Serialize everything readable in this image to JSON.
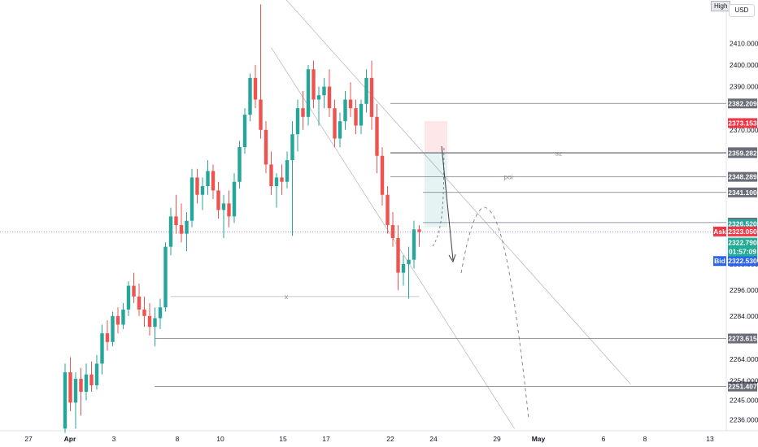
{
  "ui": {
    "currency": "USD",
    "high_label": "High",
    "ask_label": "Ask",
    "bid_label": "Bid",
    "countdown": "01:57:09"
  },
  "colors": {
    "up": "#26a69a",
    "down": "#ef5350",
    "ask": "#f23645",
    "bid": "#2962ff",
    "level": "#787b86",
    "level_tag": "#6a6d78",
    "last": "#22ab94"
  },
  "chart_data": {
    "type": "candlestick",
    "ylim": [
      2231,
      2430
    ],
    "y_ticks": [
      {
        "value": 2410,
        "label": "2410.000"
      },
      {
        "value": 2400,
        "label": "2400.000"
      },
      {
        "value": 2390,
        "label": "2390.000"
      },
      {
        "value": 2370,
        "label": "2370.000"
      },
      {
        "value": 2308,
        "label": "2308.000"
      },
      {
        "value": 2296,
        "label": "2296.000"
      },
      {
        "value": 2284,
        "label": "2284.000"
      },
      {
        "value": 2264,
        "label": "2264.000"
      },
      {
        "value": 2254,
        "label": "2254.000"
      },
      {
        "value": 2245,
        "label": "2245.000"
      },
      {
        "value": 2236,
        "label": "2236.000"
      }
    ],
    "x_ticks": [
      {
        "label": "27",
        "bold": false
      },
      {
        "label": "Apr",
        "bold": true
      },
      {
        "label": "3",
        "bold": false
      },
      {
        "label": "8",
        "bold": false
      },
      {
        "label": "10",
        "bold": false
      },
      {
        "label": "15",
        "bold": false
      },
      {
        "label": "17",
        "bold": false
      },
      {
        "label": "22",
        "bold": false
      },
      {
        "label": "24",
        "bold": false
      },
      {
        "label": "29",
        "bold": false
      },
      {
        "label": "May",
        "bold": true
      },
      {
        "label": "6",
        "bold": false
      },
      {
        "label": "8",
        "bold": false
      },
      {
        "label": "13",
        "bold": false
      }
    ],
    "candles_ohlc": [
      [
        2232,
        2262,
        2230,
        2258
      ],
      [
        2258,
        2265,
        2240,
        2244
      ],
      [
        2244,
        2258,
        2232,
        2255
      ],
      [
        2255,
        2260,
        2238,
        2249
      ],
      [
        2249,
        2262,
        2245,
        2257
      ],
      [
        2257,
        2263,
        2249,
        2252
      ],
      [
        2252,
        2266,
        2250,
        2262
      ],
      [
        2262,
        2280,
        2257,
        2276
      ],
      [
        2276,
        2282,
        2268,
        2272
      ],
      [
        2272,
        2286,
        2270,
        2284
      ],
      [
        2284,
        2288,
        2276,
        2280
      ],
      [
        2280,
        2290,
        2278,
        2287
      ],
      [
        2287,
        2300,
        2284,
        2298
      ],
      [
        2298,
        2304,
        2290,
        2293
      ],
      [
        2293,
        2299,
        2284,
        2287
      ],
      [
        2287,
        2293,
        2279,
        2284
      ],
      [
        2284,
        2290,
        2275,
        2279
      ],
      [
        2279,
        2288,
        2270,
        2283
      ],
      [
        2283,
        2292,
        2278,
        2288
      ],
      [
        2288,
        2318,
        2286,
        2316
      ],
      [
        2316,
        2334,
        2312,
        2330
      ],
      [
        2330,
        2340,
        2322,
        2326
      ],
      [
        2326,
        2336,
        2318,
        2322
      ],
      [
        2322,
        2332,
        2314,
        2328
      ],
      [
        2328,
        2352,
        2325,
        2348
      ],
      [
        2348,
        2352,
        2336,
        2340
      ],
      [
        2340,
        2348,
        2333,
        2344
      ],
      [
        2344,
        2356,
        2340,
        2351
      ],
      [
        2351,
        2354,
        2338,
        2342
      ],
      [
        2342,
        2346,
        2329,
        2333
      ],
      [
        2333,
        2340,
        2320,
        2336
      ],
      [
        2336,
        2342,
        2325,
        2330
      ],
      [
        2330,
        2350,
        2327,
        2346
      ],
      [
        2346,
        2365,
        2343,
        2362
      ],
      [
        2362,
        2380,
        2359,
        2377
      ],
      [
        2377,
        2396,
        2374,
        2394
      ],
      [
        2394,
        2400,
        2380,
        2384
      ],
      [
        2384,
        2428,
        2366,
        2370
      ],
      [
        2370,
        2374,
        2350,
        2354
      ],
      [
        2354,
        2360,
        2340,
        2344
      ],
      [
        2344,
        2350,
        2334,
        2348
      ],
      [
        2348,
        2354,
        2340,
        2346
      ],
      [
        2346,
        2360,
        2343,
        2356
      ],
      [
        2356,
        2374,
        2321,
        2368
      ],
      [
        2368,
        2384,
        2360,
        2380
      ],
      [
        2380,
        2388,
        2370,
        2376
      ],
      [
        2376,
        2400,
        2372,
        2398
      ],
      [
        2398,
        2402,
        2380,
        2384
      ],
      [
        2384,
        2390,
        2372,
        2386
      ],
      [
        2386,
        2394,
        2380,
        2390
      ],
      [
        2390,
        2398,
        2376,
        2380
      ],
      [
        2380,
        2384,
        2362,
        2366
      ],
      [
        2366,
        2378,
        2362,
        2374
      ],
      [
        2374,
        2388,
        2370,
        2384
      ],
      [
        2384,
        2392,
        2376,
        2380
      ],
      [
        2380,
        2384,
        2368,
        2372
      ],
      [
        2372,
        2384,
        2368,
        2382
      ],
      [
        2382,
        2398,
        2378,
        2394
      ],
      [
        2394,
        2402,
        2370,
        2376
      ],
      [
        2376,
        2382,
        2350,
        2358
      ],
      [
        2358,
        2362,
        2335,
        2340
      ],
      [
        2340,
        2344,
        2322,
        2326
      ],
      [
        2326,
        2332,
        2316,
        2320
      ],
      [
        2320,
        2326,
        2296,
        2304
      ],
      [
        2304,
        2312,
        2298,
        2308
      ],
      [
        2308,
        2316,
        2292,
        2310
      ],
      [
        2310,
        2328,
        2306,
        2324
      ],
      [
        2324,
        2326,
        2316,
        2322.8
      ]
    ],
    "levels": [
      {
        "value": 2382.209,
        "label": "2382.209",
        "note": ""
      },
      {
        "value": 2359.665,
        "label": "2359.665",
        "note": ""
      },
      {
        "value": 2359.282,
        "label": "2359.282",
        "note": "sz"
      },
      {
        "value": 2348.289,
        "label": "2348.289",
        "note": "poi"
      },
      {
        "value": 2341.1,
        "label": "2341.100",
        "note": ""
      },
      {
        "value": 2327.17,
        "label": "2327.170",
        "note": ""
      },
      {
        "value": 2273.615,
        "label": "2273.615",
        "note": ""
      },
      {
        "value": 2251.407,
        "label": "2251.407",
        "note": ""
      }
    ],
    "x_level": {
      "value": 2293,
      "note": "x"
    },
    "price_tags": {
      "red": {
        "value": 2373.153,
        "label": "2373.153"
      },
      "green": {
        "value": 2326.52,
        "label": "2326.520"
      },
      "ask": {
        "value": 2323.05,
        "label": "2323.050"
      },
      "last": {
        "value": 2322.79,
        "label": "2322.790"
      },
      "bid": {
        "value": 2322.53,
        "label": "2322.530"
      }
    },
    "projection": [
      [
        2359.5,
        2339
      ],
      [
        2322,
        2331
      ],
      [
        2316,
        2338
      ],
      [
        2332,
        2347
      ],
      [
        2320,
        2352
      ],
      [
        2240,
        2362
      ],
      [
        2234,
        2370
      ]
    ]
  }
}
